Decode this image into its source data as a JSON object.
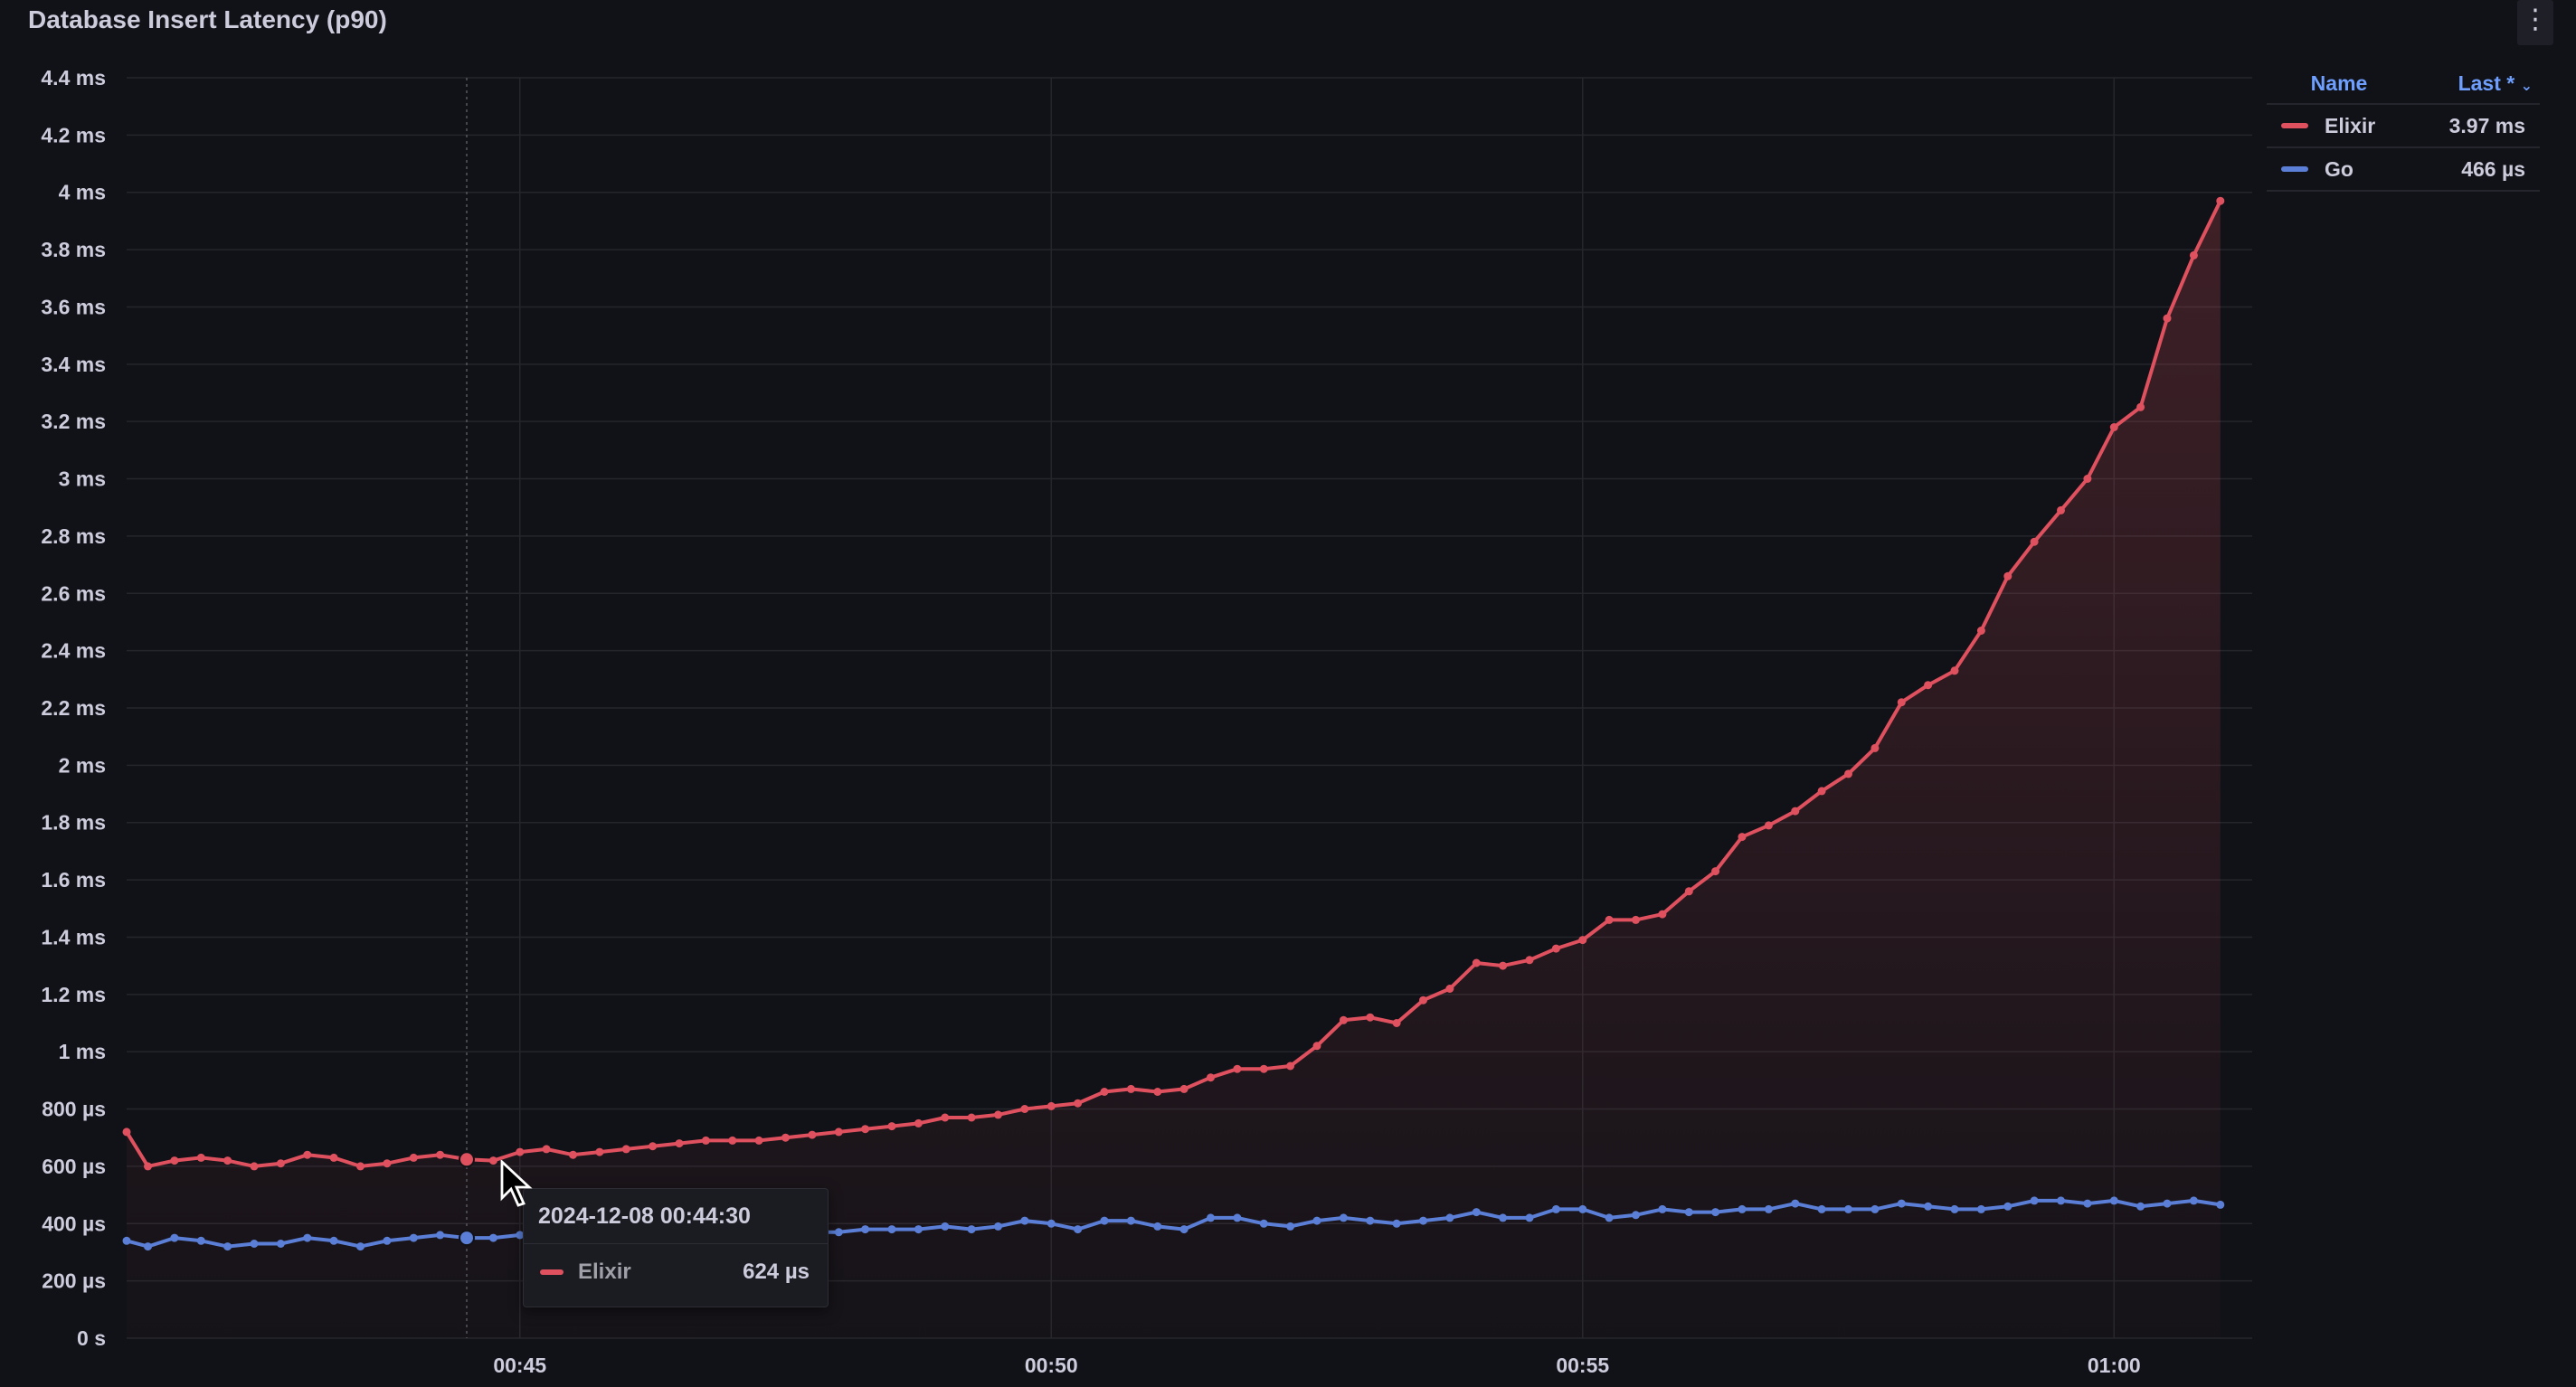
{
  "panel": {
    "title": "Database Insert Latency (p90)",
    "menu_icon": "vertical-ellipsis-icon"
  },
  "colors": {
    "background": "#111217",
    "grid": "#24262b",
    "elixir": "#e0515f",
    "go": "#5b7fd6",
    "legend_header": "#6e9fff"
  },
  "legend": {
    "name_header": "Name",
    "last_header": "Last *",
    "sort_icon": "chevron-down-icon",
    "rows": [
      {
        "name": "Elixir",
        "value": "3.97 ms"
      },
      {
        "name": "Go",
        "value": "466 µs"
      }
    ]
  },
  "tooltip": {
    "time": "2024-12-08 00:44:30",
    "series": "Elixir",
    "value": "624 µs"
  },
  "chart_data": {
    "type": "line",
    "title": "Database Insert Latency (p90)",
    "xlabel": "",
    "ylabel": "",
    "x_unit": "minutes since 00:00 (time of day, 2024-12-08)",
    "xlim": [
      41.3,
      61.3
    ],
    "ylim": [
      0,
      4.4
    ],
    "y_unit": "ms",
    "y_ticks": [
      {
        "v": 0,
        "label": "0 s"
      },
      {
        "v": 0.2,
        "label": "200 µs"
      },
      {
        "v": 0.4,
        "label": "400 µs"
      },
      {
        "v": 0.6,
        "label": "600 µs"
      },
      {
        "v": 0.8,
        "label": "800 µs"
      },
      {
        "v": 1.0,
        "label": "1 ms"
      },
      {
        "v": 1.2,
        "label": "1.2 ms"
      },
      {
        "v": 1.4,
        "label": "1.4 ms"
      },
      {
        "v": 1.6,
        "label": "1.6 ms"
      },
      {
        "v": 1.8,
        "label": "1.8 ms"
      },
      {
        "v": 2.0,
        "label": "2 ms"
      },
      {
        "v": 2.2,
        "label": "2.2 ms"
      },
      {
        "v": 2.4,
        "label": "2.4 ms"
      },
      {
        "v": 2.6,
        "label": "2.6 ms"
      },
      {
        "v": 2.8,
        "label": "2.8 ms"
      },
      {
        "v": 3.0,
        "label": "3 ms"
      },
      {
        "v": 3.2,
        "label": "3.2 ms"
      },
      {
        "v": 3.4,
        "label": "3.4 ms"
      },
      {
        "v": 3.6,
        "label": "3.6 ms"
      },
      {
        "v": 3.8,
        "label": "3.8 ms"
      },
      {
        "v": 4.0,
        "label": "4 ms"
      },
      {
        "v": 4.2,
        "label": "4.2 ms"
      },
      {
        "v": 4.4,
        "label": "4.4 ms"
      }
    ],
    "x_ticks": [
      {
        "v": 45,
        "label": "00:45"
      },
      {
        "v": 50,
        "label": "00:50"
      },
      {
        "v": 55,
        "label": "00:55"
      },
      {
        "v": 60,
        "label": "01:00"
      }
    ],
    "grid": true,
    "legend_position": "right",
    "hover_x": 44.5,
    "series": [
      {
        "name": "Elixir",
        "color": "#e0515f",
        "fill": true,
        "points": [
          [
            41.3,
            0.72
          ],
          [
            41.5,
            0.6
          ],
          [
            41.75,
            0.62
          ],
          [
            42.0,
            0.63
          ],
          [
            42.25,
            0.62
          ],
          [
            42.5,
            0.6
          ],
          [
            42.75,
            0.61
          ],
          [
            43.0,
            0.64
          ],
          [
            43.25,
            0.63
          ],
          [
            43.5,
            0.6
          ],
          [
            43.75,
            0.61
          ],
          [
            44.0,
            0.63
          ],
          [
            44.25,
            0.64
          ],
          [
            44.5,
            0.624
          ],
          [
            44.75,
            0.62
          ],
          [
            45.0,
            0.65
          ],
          [
            45.25,
            0.66
          ],
          [
            45.5,
            0.64
          ],
          [
            45.75,
            0.65
          ],
          [
            46.0,
            0.66
          ],
          [
            46.25,
            0.67
          ],
          [
            46.5,
            0.68
          ],
          [
            46.75,
            0.69
          ],
          [
            47.0,
            0.69
          ],
          [
            47.25,
            0.69
          ],
          [
            47.5,
            0.7
          ],
          [
            47.75,
            0.71
          ],
          [
            48.0,
            0.72
          ],
          [
            48.25,
            0.73
          ],
          [
            48.5,
            0.74
          ],
          [
            48.75,
            0.75
          ],
          [
            49.0,
            0.77
          ],
          [
            49.25,
            0.77
          ],
          [
            49.5,
            0.78
          ],
          [
            49.75,
            0.8
          ],
          [
            50.0,
            0.81
          ],
          [
            50.25,
            0.82
          ],
          [
            50.5,
            0.86
          ],
          [
            50.75,
            0.87
          ],
          [
            51.0,
            0.86
          ],
          [
            51.25,
            0.87
          ],
          [
            51.5,
            0.91
          ],
          [
            51.75,
            0.94
          ],
          [
            52.0,
            0.94
          ],
          [
            52.25,
            0.95
          ],
          [
            52.5,
            1.02
          ],
          [
            52.75,
            1.11
          ],
          [
            53.0,
            1.12
          ],
          [
            53.25,
            1.1
          ],
          [
            53.5,
            1.18
          ],
          [
            53.75,
            1.22
          ],
          [
            54.0,
            1.31
          ],
          [
            54.25,
            1.3
          ],
          [
            54.5,
            1.32
          ],
          [
            54.75,
            1.36
          ],
          [
            55.0,
            1.39
          ],
          [
            55.25,
            1.46
          ],
          [
            55.5,
            1.46
          ],
          [
            55.75,
            1.48
          ],
          [
            56.0,
            1.56
          ],
          [
            56.25,
            1.63
          ],
          [
            56.5,
            1.75
          ],
          [
            56.75,
            1.79
          ],
          [
            57.0,
            1.84
          ],
          [
            57.25,
            1.91
          ],
          [
            57.5,
            1.97
          ],
          [
            57.75,
            2.06
          ],
          [
            58.0,
            2.22
          ],
          [
            58.25,
            2.28
          ],
          [
            58.5,
            2.33
          ],
          [
            58.75,
            2.47
          ],
          [
            59.0,
            2.66
          ],
          [
            59.25,
            2.78
          ],
          [
            59.5,
            2.89
          ],
          [
            59.75,
            3.0
          ],
          [
            60.0,
            3.18
          ],
          [
            60.25,
            3.25
          ],
          [
            60.5,
            3.56
          ],
          [
            60.75,
            3.78
          ],
          [
            61.0,
            3.97
          ]
        ]
      },
      {
        "name": "Go",
        "color": "#5b7fd6",
        "fill": false,
        "points": [
          [
            41.3,
            0.34
          ],
          [
            41.5,
            0.32
          ],
          [
            41.75,
            0.35
          ],
          [
            42.0,
            0.34
          ],
          [
            42.25,
            0.32
          ],
          [
            42.5,
            0.33
          ],
          [
            42.75,
            0.33
          ],
          [
            43.0,
            0.35
          ],
          [
            43.25,
            0.34
          ],
          [
            43.5,
            0.32
          ],
          [
            43.75,
            0.34
          ],
          [
            44.0,
            0.35
          ],
          [
            44.25,
            0.36
          ],
          [
            44.5,
            0.35
          ],
          [
            44.75,
            0.35
          ],
          [
            45.0,
            0.36
          ],
          [
            45.25,
            0.36
          ],
          [
            45.5,
            0.37
          ],
          [
            45.75,
            0.37
          ],
          [
            46.0,
            0.36
          ],
          [
            46.25,
            0.37
          ],
          [
            46.5,
            0.37
          ],
          [
            46.75,
            0.38
          ],
          [
            47.0,
            0.38
          ],
          [
            47.25,
            0.37
          ],
          [
            47.5,
            0.37
          ],
          [
            47.75,
            0.37
          ],
          [
            48.0,
            0.37
          ],
          [
            48.25,
            0.38
          ],
          [
            48.5,
            0.38
          ],
          [
            48.75,
            0.38
          ],
          [
            49.0,
            0.39
          ],
          [
            49.25,
            0.38
          ],
          [
            49.5,
            0.39
          ],
          [
            49.75,
            0.41
          ],
          [
            50.0,
            0.4
          ],
          [
            50.25,
            0.38
          ],
          [
            50.5,
            0.41
          ],
          [
            50.75,
            0.41
          ],
          [
            51.0,
            0.39
          ],
          [
            51.25,
            0.38
          ],
          [
            51.5,
            0.42
          ],
          [
            51.75,
            0.42
          ],
          [
            52.0,
            0.4
          ],
          [
            52.25,
            0.39
          ],
          [
            52.5,
            0.41
          ],
          [
            52.75,
            0.42
          ],
          [
            53.0,
            0.41
          ],
          [
            53.25,
            0.4
          ],
          [
            53.5,
            0.41
          ],
          [
            53.75,
            0.42
          ],
          [
            54.0,
            0.44
          ],
          [
            54.25,
            0.42
          ],
          [
            54.5,
            0.42
          ],
          [
            54.75,
            0.45
          ],
          [
            55.0,
            0.45
          ],
          [
            55.25,
            0.42
          ],
          [
            55.5,
            0.43
          ],
          [
            55.75,
            0.45
          ],
          [
            56.0,
            0.44
          ],
          [
            56.25,
            0.44
          ],
          [
            56.5,
            0.45
          ],
          [
            56.75,
            0.45
          ],
          [
            57.0,
            0.47
          ],
          [
            57.25,
            0.45
          ],
          [
            57.5,
            0.45
          ],
          [
            57.75,
            0.45
          ],
          [
            58.0,
            0.47
          ],
          [
            58.25,
            0.46
          ],
          [
            58.5,
            0.45
          ],
          [
            58.75,
            0.45
          ],
          [
            59.0,
            0.46
          ],
          [
            59.25,
            0.48
          ],
          [
            59.5,
            0.48
          ],
          [
            59.75,
            0.47
          ],
          [
            60.0,
            0.48
          ],
          [
            60.25,
            0.46
          ],
          [
            60.5,
            0.47
          ],
          [
            60.75,
            0.48
          ],
          [
            61.0,
            0.466
          ]
        ]
      }
    ]
  }
}
